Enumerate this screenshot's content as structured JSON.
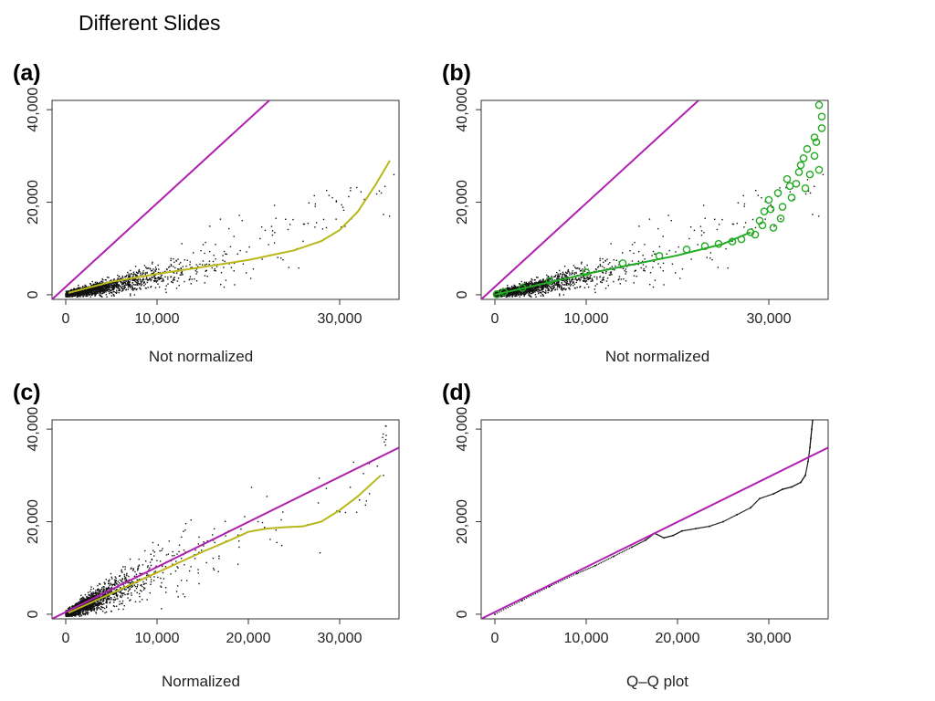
{
  "slide": {
    "title": "Different Slides"
  },
  "colors": {
    "identity_line": "#b020b0",
    "loess_curve": "#b8b81a",
    "highlight": "#22aa22",
    "points": "#111111"
  },
  "chart_data": [
    {
      "panel": "(a)",
      "type": "scatter",
      "xlabel": "Not normalized",
      "xlim": [
        -1500,
        36500
      ],
      "ylim": [
        -1000,
        42000
      ],
      "xticks": [
        0,
        10000,
        30000
      ],
      "xtick_labels": [
        "0",
        "10,000",
        "30,000"
      ],
      "yticks": [
        0,
        20000,
        40000
      ],
      "ytick_labels": [
        "0",
        "20,000",
        "40,000"
      ],
      "scatter_profile": "notnorm",
      "lines": [
        {
          "kind": "identity",
          "x": [
            -1500,
            22300
          ],
          "y": [
            -1000,
            42000
          ]
        },
        {
          "kind": "loess",
          "x": [
            300,
            5000,
            10000,
            15000,
            20000,
            25000,
            28000,
            30000,
            32000,
            34000,
            35500
          ],
          "y": [
            400,
            2800,
            4500,
            6000,
            7500,
            9600,
            11600,
            14000,
            18000,
            24000,
            29000
          ]
        }
      ]
    },
    {
      "panel": "(b)",
      "type": "scatter",
      "xlabel": "Not normalized",
      "xlim": [
        -1500,
        36500
      ],
      "ylim": [
        -1000,
        42000
      ],
      "xticks": [
        0,
        10000,
        30000
      ],
      "xtick_labels": [
        "0",
        "10,000",
        "30,000"
      ],
      "yticks": [
        0,
        20000,
        40000
      ],
      "ytick_labels": [
        "0",
        "20,000",
        "40,000"
      ],
      "scatter_profile": "notnorm",
      "lines": [
        {
          "kind": "identity",
          "x": [
            -1500,
            22300
          ],
          "y": [
            -1000,
            42000
          ]
        },
        {
          "kind": "fit",
          "x": [
            0,
            10000,
            20000,
            25000,
            28000
          ],
          "y": [
            0,
            4500,
            8500,
            11000,
            13500
          ]
        }
      ],
      "highlighted_points": {
        "x": [
          200,
          1000,
          3000,
          6000,
          10000,
          14000,
          18000,
          21000,
          23000,
          24500,
          26000,
          27000,
          28000,
          29000,
          29500,
          30000,
          30500,
          31000,
          31500,
          32000,
          32500,
          33000,
          33500,
          34000,
          34500,
          35000,
          35500,
          35000,
          35800,
          35500,
          35800,
          35200,
          33300,
          32300,
          31300,
          30200,
          29300,
          28500,
          33800,
          34200
        ],
        "y": [
          100,
          600,
          1500,
          3000,
          4800,
          6800,
          8400,
          9800,
          10500,
          11000,
          11500,
          12000,
          13500,
          16000,
          18000,
          20500,
          14500,
          22000,
          19000,
          25000,
          21000,
          24000,
          28000,
          23000,
          26000,
          34000,
          41000,
          30000,
          38500,
          27000,
          36000,
          33000,
          26500,
          23500,
          16500,
          18500,
          15000,
          13000,
          29500,
          31500
        ]
      }
    },
    {
      "panel": "(c)",
      "type": "scatter",
      "xlabel": "Normalized",
      "xlim": [
        -1500,
        36500
      ],
      "ylim": [
        -1000,
        42000
      ],
      "xticks": [
        0,
        10000,
        20000,
        30000
      ],
      "xtick_labels": [
        "0",
        "10,000",
        "20,000",
        "30,000"
      ],
      "yticks": [
        0,
        20000,
        40000
      ],
      "ytick_labels": [
        "0",
        "20,000",
        "40,000"
      ],
      "scatter_profile": "norm",
      "lines": [
        {
          "kind": "identity",
          "x": [
            -1500,
            36500
          ],
          "y": [
            -1000,
            36000
          ]
        },
        {
          "kind": "loess",
          "x": [
            300,
            5000,
            10000,
            15000,
            18000,
            20000,
            22000,
            24000,
            26000,
            28000,
            30000,
            32000,
            34500
          ],
          "y": [
            300,
            4500,
            9000,
            13500,
            16000,
            17800,
            18500,
            18800,
            19000,
            20000,
            22500,
            25500,
            30000
          ]
        }
      ]
    },
    {
      "panel": "(d)",
      "type": "scatter",
      "xlabel": "Q–Q plot",
      "xlim": [
        -1500,
        36500
      ],
      "ylim": [
        -1000,
        42000
      ],
      "xticks": [
        0,
        10000,
        20000,
        30000
      ],
      "xtick_labels": [
        "0",
        "10,000",
        "20,000",
        "30,000"
      ],
      "yticks": [
        0,
        20000,
        40000
      ],
      "ytick_labels": [
        "0",
        "20,000",
        "40,000"
      ],
      "scatter_profile": "qq",
      "lines": [
        {
          "kind": "identity",
          "x": [
            -1500,
            36500
          ],
          "y": [
            -1000,
            36000
          ]
        }
      ],
      "qq_points": {
        "x": [
          0,
          3000,
          6000,
          9000,
          11000,
          13000,
          15000,
          16500,
          17500,
          18500,
          19500,
          20500,
          22000,
          23500,
          25000,
          26500,
          28000,
          29000,
          30500,
          31500,
          32500,
          33500,
          34000,
          34300,
          34500,
          34600,
          34700,
          34800
        ],
        "y": [
          0,
          3000,
          6000,
          8800,
          10500,
          12500,
          14500,
          16000,
          17500,
          16500,
          17000,
          18000,
          18500,
          19000,
          20000,
          21500,
          23000,
          25000,
          26000,
          27000,
          27500,
          28500,
          30000,
          33000,
          36000,
          38000,
          40000,
          42000
        ]
      }
    }
  ]
}
